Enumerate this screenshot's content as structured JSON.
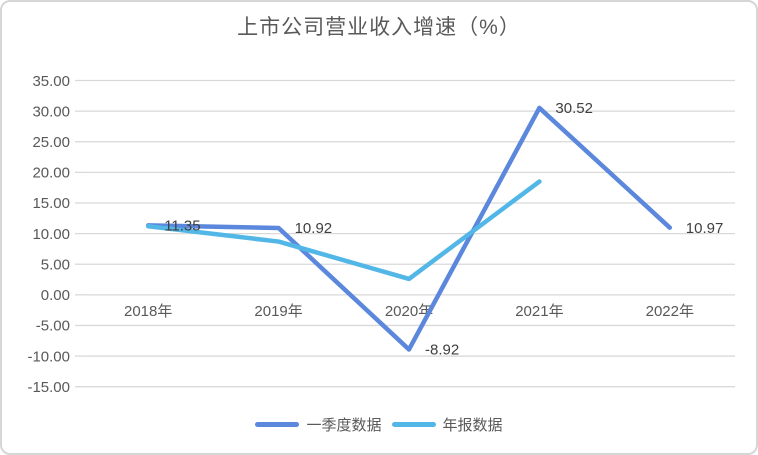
{
  "title": "上市公司营业收入增速（%）",
  "colors": {
    "series1": "#5b87dc",
    "series2": "#52b7e6",
    "gridline": "#d9d9d9",
    "axis_text": "#595959",
    "data_label_text": "#3f3f3f",
    "card_border": "#d6d6d6",
    "title_text": "#595959"
  },
  "chart_data": {
    "type": "line",
    "title": "上市公司营业收入增速（%）",
    "categories": [
      "2018年",
      "2019年",
      "2020年",
      "2021年",
      "2022年"
    ],
    "series": [
      {
        "name": "一季度数据",
        "color": "#5b87dc",
        "values": [
          11.35,
          10.92,
          -8.92,
          30.52,
          10.97
        ],
        "data_labels": [
          "11.35",
          "10.92",
          "-8.92",
          "30.52",
          "10.97"
        ]
      },
      {
        "name": "年报数据",
        "color": "#52b7e6",
        "values": [
          11.2,
          8.7,
          2.6,
          18.5,
          null
        ],
        "data_labels": [
          null,
          null,
          null,
          null,
          null
        ]
      }
    ],
    "ylim": [
      -15,
      35
    ],
    "ytick_step": 5,
    "ytick_labels": [
      "35.00",
      "30.00",
      "25.00",
      "20.00",
      "15.00",
      "10.00",
      "5.00",
      "0.00",
      "-5.00",
      "-10.00",
      "-15.00"
    ],
    "xlabel": "",
    "ylabel": "",
    "grid": true,
    "legend_position": "bottom"
  }
}
